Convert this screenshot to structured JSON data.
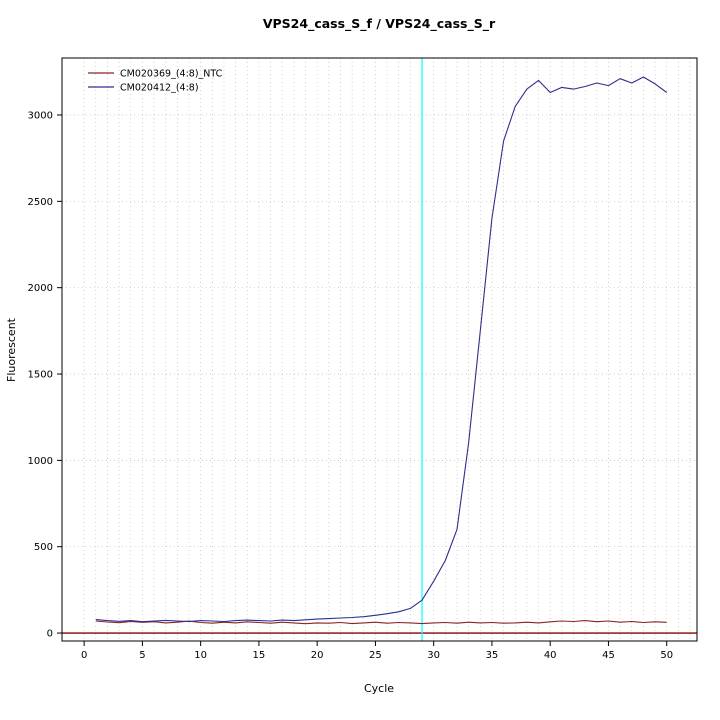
{
  "page": {
    "background": "#ffffff"
  },
  "chart_data": {
    "type": "line",
    "title": "VPS24_cass_S_f / VPS24_cass_S_r",
    "xlabel": "Cycle",
    "ylabel": "Fluorescent",
    "xlim": [
      -1.9,
      52.6
    ],
    "ylim": [
      -46,
      3330
    ],
    "x_ticks": [
      0,
      5,
      10,
      15,
      20,
      25,
      30,
      35,
      40,
      45,
      50
    ],
    "y_ticks": [
      0,
      500,
      1000,
      1500,
      2000,
      2500,
      3000
    ],
    "grid": {
      "vertical_step": 1,
      "horizontal_step": 500,
      "color": "#bebebe",
      "style": "dotted"
    },
    "threshold_line": {
      "y": 0,
      "color": "#8b0000"
    },
    "vline": {
      "x": 29,
      "color": "#00ffff"
    },
    "legend": {
      "position": "top-left",
      "entries": [
        {
          "label": "CM020369_(4:8)_NTC",
          "color": "#8b2323"
        },
        {
          "label": "CM020412_(4:8)",
          "color": "#2e2e8f"
        }
      ]
    },
    "x": [
      1,
      2,
      3,
      4,
      5,
      6,
      7,
      8,
      9,
      10,
      11,
      12,
      13,
      14,
      15,
      16,
      17,
      18,
      19,
      20,
      21,
      22,
      23,
      24,
      25,
      26,
      27,
      28,
      29,
      30,
      31,
      32,
      33,
      34,
      35,
      36,
      37,
      38,
      39,
      40,
      41,
      42,
      43,
      44,
      45,
      46,
      47,
      48,
      49,
      50
    ],
    "series": [
      {
        "name": "CM020369_(4:8)_NTC",
        "color": "#8b2323",
        "values": [
          70,
          64,
          60,
          67,
          62,
          66,
          59,
          63,
          69,
          61,
          57,
          63,
          59,
          65,
          61,
          57,
          63,
          59,
          54,
          59,
          57,
          61,
          55,
          59,
          63,
          57,
          61,
          59,
          55,
          59,
          61,
          57,
          63,
          59,
          61,
          57,
          59,
          63,
          59,
          65,
          70,
          67,
          72,
          66,
          70,
          63,
          67,
          61,
          65,
          62
        ]
      },
      {
        "name": "CM020412_(4:8)",
        "color": "#2e2e8f",
        "values": [
          78,
          72,
          68,
          72,
          66,
          70,
          73,
          70,
          67,
          72,
          70,
          67,
          72,
          75,
          72,
          70,
          75,
          72,
          77,
          81,
          84,
          87,
          90,
          95,
          103,
          112,
          123,
          143,
          190,
          300,
          420,
          600,
          1100,
          1750,
          2400,
          2850,
          3050,
          3150,
          3200,
          3130,
          3160,
          3150,
          3165,
          3185,
          3170,
          3210,
          3185,
          3220,
          3180,
          3130
        ]
      }
    ]
  }
}
